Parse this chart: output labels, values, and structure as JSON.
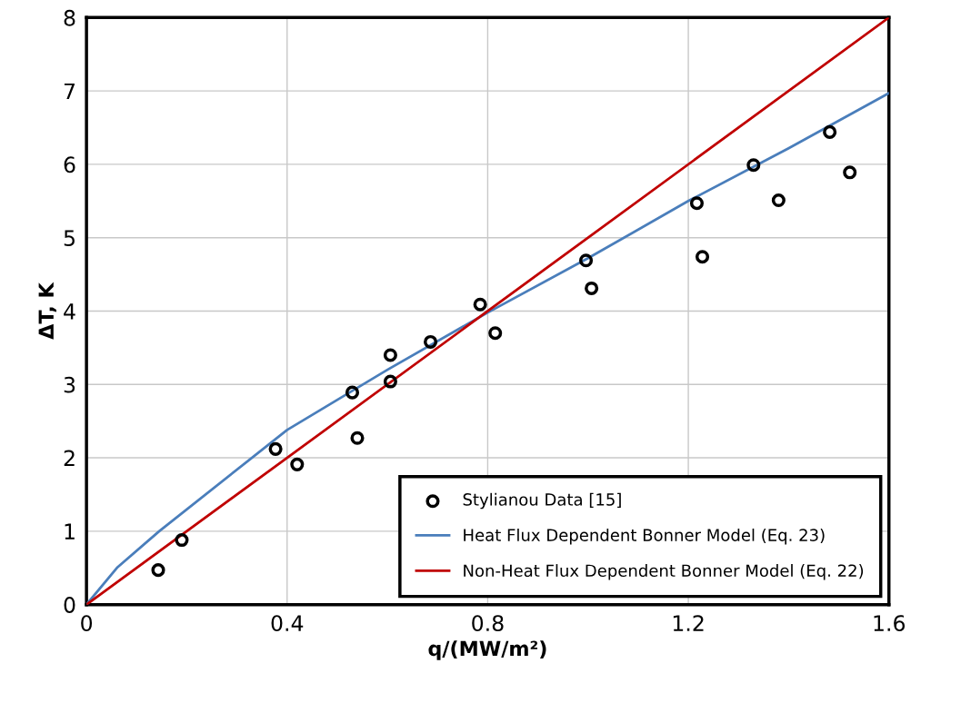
{
  "chart_data": {
    "type": "scatter",
    "xlabel": "q/(MW/m²)",
    "ylabel": "ΔT, K",
    "xlim": [
      0,
      1.6
    ],
    "xticks": [
      0,
      0.4,
      0.8,
      1.2,
      1.6
    ],
    "ylim": [
      0,
      8
    ],
    "yticks": [
      0,
      1,
      2,
      3,
      4,
      5,
      6,
      7,
      8
    ],
    "grid": true,
    "legend": "lower right",
    "series": [
      {
        "name": "Stylianou Data [15]",
        "marker": "circle",
        "color": "#000000",
        "x": [
          0.143,
          0.19,
          0.377,
          0.42,
          0.53,
          0.54,
          0.606,
          0.606,
          0.686,
          0.785,
          0.815,
          0.996,
          1.007,
          1.217,
          1.228,
          1.33,
          1.38,
          1.482,
          1.522
        ],
        "values": [
          0.47,
          0.88,
          2.12,
          1.91,
          2.89,
          2.27,
          3.4,
          3.04,
          3.58,
          4.09,
          3.7,
          4.69,
          4.31,
          5.47,
          4.74,
          5.99,
          5.51,
          6.44,
          5.89
        ]
      },
      {
        "name": "Heat Flux Dependent Bonner Model (Eq. 23)",
        "type": "line",
        "color": "#4a7ebb",
        "x": [
          0,
          0.062,
          0.145,
          0.4,
          0.6,
          0.8,
          1.0,
          1.2,
          1.4,
          1.6
        ],
        "values": [
          0,
          0.51,
          1.0,
          2.38,
          3.2,
          3.98,
          4.72,
          5.5,
          6.22,
          6.97
        ]
      },
      {
        "name": "Non-Heat Flux Dependent Bonner Model (Eq. 22)",
        "type": "line",
        "color": "#c00000",
        "x": [
          0,
          1.6
        ],
        "values": [
          0,
          8
        ]
      }
    ]
  }
}
